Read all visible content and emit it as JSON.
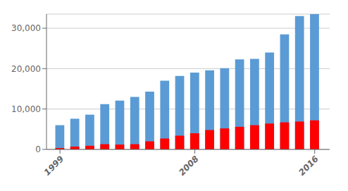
{
  "chart_data": {
    "type": "bar",
    "x": [
      1999,
      2000,
      2001,
      2002,
      2003,
      2004,
      2005,
      2006,
      2007,
      2008,
      2009,
      2010,
      2011,
      2012,
      2013,
      2014,
      2015,
      2016
    ],
    "series": [
      {
        "color": "#5B9BD5",
        "values": [
          6000,
          7600,
          8600,
          11200,
          12100,
          13000,
          14300,
          17000,
          18200,
          19000,
          19600,
          20100,
          22300,
          22400,
          24000,
          28500,
          33000,
          33500
        ]
      },
      {
        "color": "#FF0000",
        "values": [
          350,
          700,
          900,
          1300,
          1200,
          1300,
          2000,
          2700,
          3400,
          4000,
          4800,
          5200,
          5600,
          6000,
          6400,
          6700,
          6900,
          7200
        ]
      }
    ],
    "xlim": [
      1998.1,
      2017.0
    ],
    "xticks": [
      1999,
      2008,
      2016
    ],
    "ylim": [
      0,
      33500
    ],
    "yticks": [
      0,
      {
        "value": 10000,
        "label": "10,000"
      },
      {
        "value": 20000,
        "label": "20,000"
      },
      {
        "value": 30000,
        "label": "30,000"
      }
    ],
    "grid": true
  }
}
